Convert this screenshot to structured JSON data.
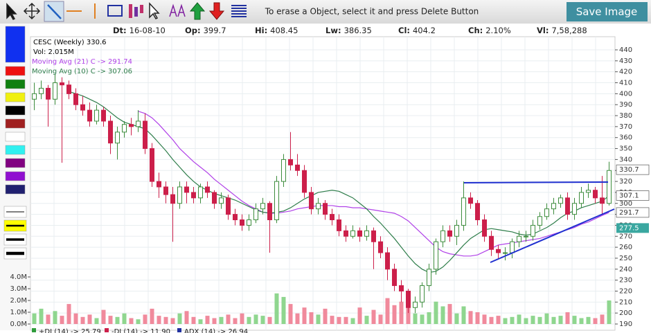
{
  "toolbar": {
    "message": "To erase a Object, select it and press Delete Button",
    "button": "Save Image"
  },
  "info": [
    {
      "label": "Dt:",
      "value": "16-08-10"
    },
    {
      "label": "Op:",
      "value": 399.7
    },
    {
      "label": "Hi:",
      "value": 408.45
    },
    {
      "label": "Lw:",
      "value": 386.35
    },
    {
      "label": "Cl:",
      "value": 404.2
    },
    {
      "label": "Ch:",
      "value": "2.10%"
    },
    {
      "label": "Vl:",
      "value": "7,58,288"
    }
  ],
  "legend": {
    "symbol": "CESC (Weekly) 330.6",
    "volume": "Vol: 2.015M",
    "ma21": "Moving Avg (21) C -> 291.74",
    "ma10": "Moving Avg (10) C -> 307.06"
  },
  "indicators": [
    "+DI (14) -> 25.79",
    "-DI (14) -> 11.90",
    "ADX (14) -> 26.94"
  ],
  "chart_data": {
    "type": "candlestick",
    "ylim": [
      190,
      440
    ],
    "yticks": [
      190,
      200,
      210,
      220,
      230,
      240,
      250,
      260,
      270,
      280,
      290,
      300,
      310,
      320,
      330,
      340,
      350,
      360,
      370,
      380,
      390,
      400,
      410,
      420,
      430,
      440
    ],
    "vol_ylim": [
      0,
      4
    ],
    "vol_ticks": [
      {
        "value": 0,
        "label": "0.0M"
      },
      {
        "value": 1,
        "label": "1.0M"
      },
      {
        "value": 2,
        "label": "2.0M"
      },
      {
        "value": 3,
        "label": "3.0M"
      },
      {
        "value": 4,
        "label": "4.0M"
      }
    ],
    "price_tags": [
      330.7,
      307.1,
      291.7,
      277.5
    ],
    "up_color": "#3c8c3c",
    "down_color": "#cc1f4a",
    "vol_up_color": "#8fd68f",
    "vol_down_color": "#f08a9c",
    "ma21_color": "#b040e8",
    "ma10_color": "#2e7d4a",
    "ohlc": [
      [
        395,
        410,
        385,
        400
      ],
      [
        400,
        412,
        395,
        405
      ],
      [
        405,
        408,
        370,
        395
      ],
      [
        395,
        418,
        390,
        410
      ],
      [
        410,
        415,
        337,
        408
      ],
      [
        408,
        412,
        395,
        400
      ],
      [
        400,
        405,
        385,
        390
      ],
      [
        390,
        398,
        380,
        385
      ],
      [
        385,
        392,
        370,
        375
      ],
      [
        375,
        390,
        372,
        385
      ],
      [
        385,
        388,
        370,
        375
      ],
      [
        375,
        380,
        345,
        355
      ],
      [
        355,
        370,
        340,
        365
      ],
      [
        365,
        375,
        360,
        372
      ],
      [
        372,
        378,
        362,
        370
      ],
      [
        370,
        385,
        365,
        375
      ],
      [
        375,
        382,
        345,
        350
      ],
      [
        350,
        355,
        315,
        320
      ],
      [
        320,
        328,
        305,
        315
      ],
      [
        315,
        320,
        300,
        308
      ],
      [
        308,
        315,
        265,
        300
      ],
      [
        300,
        320,
        295,
        315
      ],
      [
        315,
        320,
        300,
        310
      ],
      [
        310,
        315,
        300,
        305
      ],
      [
        305,
        318,
        300,
        315
      ],
      [
        315,
        320,
        305,
        310
      ],
      [
        310,
        312,
        295,
        300
      ],
      [
        300,
        310,
        295,
        305
      ],
      [
        305,
        308,
        285,
        290
      ],
      [
        290,
        295,
        280,
        285
      ],
      [
        285,
        290,
        275,
        280
      ],
      [
        280,
        290,
        275,
        285
      ],
      [
        285,
        300,
        282,
        295
      ],
      [
        295,
        305,
        290,
        300
      ],
      [
        300,
        302,
        255,
        285
      ],
      [
        285,
        325,
        282,
        320
      ],
      [
        320,
        345,
        315,
        340
      ],
      [
        340,
        365,
        330,
        335
      ],
      [
        335,
        345,
        325,
        330
      ],
      [
        330,
        335,
        305,
        310
      ],
      [
        310,
        315,
        290,
        295
      ],
      [
        295,
        305,
        290,
        300
      ],
      [
        300,
        303,
        285,
        290
      ],
      [
        290,
        295,
        280,
        285
      ],
      [
        285,
        290,
        270,
        275
      ],
      [
        275,
        280,
        265,
        270
      ],
      [
        270,
        280,
        268,
        275
      ],
      [
        275,
        278,
        265,
        270
      ],
      [
        270,
        280,
        266,
        275
      ],
      [
        275,
        278,
        240,
        265
      ],
      [
        265,
        270,
        250,
        255
      ],
      [
        255,
        260,
        230,
        240
      ],
      [
        240,
        245,
        220,
        225
      ],
      [
        225,
        230,
        210,
        220
      ],
      [
        220,
        222,
        200,
        205
      ],
      [
        205,
        215,
        200,
        210
      ],
      [
        210,
        228,
        205,
        225
      ],
      [
        225,
        245,
        220,
        240
      ],
      [
        240,
        268,
        235,
        265
      ],
      [
        265,
        280,
        260,
        275
      ],
      [
        275,
        280,
        265,
        270
      ],
      [
        270,
        285,
        262,
        280
      ],
      [
        280,
        320,
        275,
        305
      ],
      [
        305,
        310,
        295,
        300
      ],
      [
        300,
        303,
        280,
        285
      ],
      [
        285,
        290,
        265,
        270
      ],
      [
        270,
        275,
        252,
        258
      ],
      [
        258,
        262,
        250,
        255
      ],
      [
        255,
        260,
        248,
        255
      ],
      [
        255,
        268,
        250,
        265
      ],
      [
        265,
        275,
        260,
        270
      ],
      [
        270,
        275,
        265,
        270
      ],
      [
        270,
        285,
        266,
        280
      ],
      [
        280,
        292,
        276,
        288
      ],
      [
        288,
        300,
        285,
        295
      ],
      [
        295,
        305,
        290,
        300
      ],
      [
        300,
        308,
        296,
        305
      ],
      [
        305,
        310,
        285,
        290
      ],
      [
        290,
        305,
        285,
        300
      ],
      [
        300,
        315,
        296,
        310
      ],
      [
        310,
        318,
        305,
        312
      ],
      [
        312,
        315,
        300,
        305
      ],
      [
        305,
        325,
        290,
        300
      ],
      [
        300,
        338,
        298,
        330
      ]
    ],
    "volume": [
      0.9,
      1.3,
      0.8,
      1.1,
      0.7,
      1.7,
      0.9,
      0.6,
      0.8,
      0.5,
      1.2,
      0.7,
      0.6,
      0.9,
      0.5,
      0.4,
      0.8,
      1.3,
      0.7,
      0.6,
      0.5,
      0.9,
      1.1,
      0.6,
      0.4,
      0.7,
      0.5,
      0.6,
      0.8,
      0.5,
      0.9,
      0.6,
      0.8,
      0.7,
      0.6,
      2.6,
      2.3,
      1.7,
      0.9,
      1.4,
      1.0,
      0.8,
      1.3,
      0.7,
      0.6,
      0.6,
      0.5,
      1.4,
      0.7,
      1.2,
      0.8,
      2.2,
      1.6,
      1.9,
      1.4,
      0.9,
      0.8,
      1.0,
      1.9,
      1.5,
      1.7,
      0.9,
      1.5,
      1.1,
      1.0,
      0.8,
      0.6,
      0.7,
      0.5,
      0.6,
      0.8,
      0.5,
      0.7,
      0.6,
      0.9,
      0.6,
      0.7,
      1.0,
      0.7,
      0.5,
      0.6,
      0.5,
      0.8,
      2.0
    ],
    "ma10": [
      null,
      null,
      null,
      null,
      null,
      402,
      400,
      398,
      395,
      392,
      388,
      383,
      378,
      374,
      372,
      370,
      368,
      362,
      355,
      348,
      340,
      333,
      326,
      320,
      315,
      312,
      309,
      307,
      305,
      303,
      300,
      297,
      294,
      292,
      291,
      292,
      293,
      296,
      300,
      304,
      307,
      310,
      311,
      312,
      311,
      308,
      305,
      300,
      295,
      288,
      282,
      275,
      268,
      260,
      252,
      245,
      240,
      237,
      238,
      242,
      248,
      255,
      262,
      268,
      272,
      276,
      277,
      276,
      275,
      274,
      272,
      271,
      272,
      275,
      278,
      282,
      287,
      291,
      293,
      296,
      298,
      300,
      302,
      307
    ],
    "ma21": [
      null,
      null,
      null,
      null,
      null,
      null,
      null,
      null,
      null,
      null,
      null,
      null,
      null,
      null,
      null,
      384,
      382,
      378,
      372,
      365,
      358,
      350,
      344,
      338,
      333,
      328,
      322,
      317,
      312,
      307,
      302,
      298,
      295,
      292,
      291,
      291,
      292,
      293,
      295,
      296,
      297,
      298,
      298,
      298,
      297,
      297,
      296,
      296,
      295,
      294,
      293,
      292,
      291,
      288,
      284,
      278,
      272,
      266,
      260,
      256,
      254,
      253,
      252,
      252,
      253,
      256,
      259,
      262,
      263,
      264,
      265,
      266,
      267,
      268,
      270,
      272,
      274,
      276,
      278,
      281,
      283,
      286,
      289,
      291.7
    ]
  }
}
